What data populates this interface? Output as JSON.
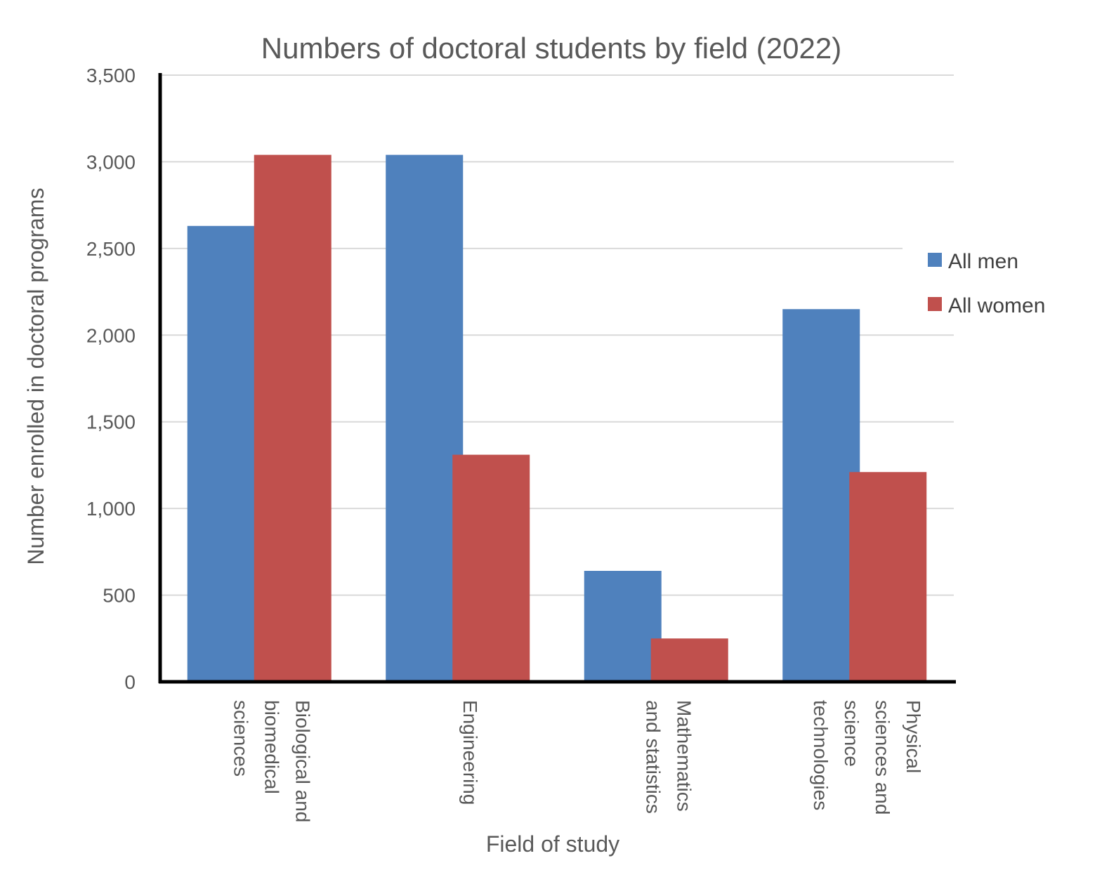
{
  "chart_data": {
    "type": "bar",
    "title": "Numbers of doctoral students by field (2022)",
    "xlabel": "Field of study",
    "ylabel": "Number enrolled in doctoral programs",
    "ylim": [
      0,
      3500
    ],
    "yticks": [
      0,
      500,
      1000,
      1500,
      2000,
      2500,
      3000,
      3500
    ],
    "ytick_labels": [
      "0",
      "500",
      "1,000",
      "1,500",
      "2,000",
      "2,500",
      "3,000",
      "3,500"
    ],
    "categories": [
      [
        "Biological and",
        "biomedical",
        "sciences"
      ],
      [
        "Engineering"
      ],
      [
        "Mathematics",
        "and statistics"
      ],
      [
        "Physical",
        "sciences and",
        "science",
        "technologies"
      ]
    ],
    "series": [
      {
        "name": "All men",
        "color": "#4f81bd",
        "values": [
          2630,
          3040,
          640,
          2150
        ]
      },
      {
        "name": "All women",
        "color": "#c0504d",
        "values": [
          3040,
          1310,
          250,
          1210
        ]
      }
    ],
    "grid": true,
    "legend_position": "right"
  }
}
